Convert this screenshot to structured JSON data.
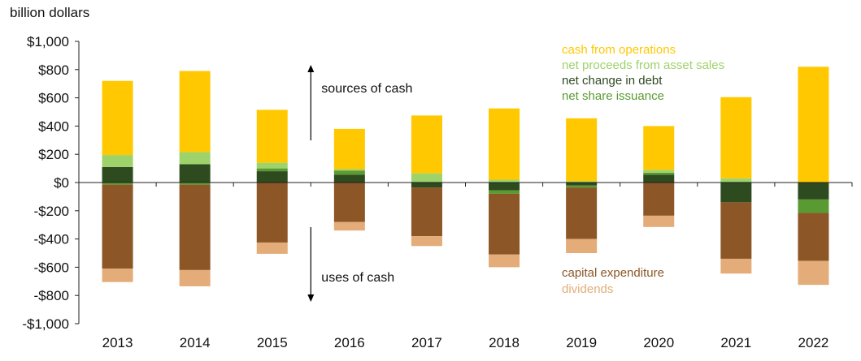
{
  "chart_data": {
    "type": "bar",
    "stacked": true,
    "ylabel": "billion dollars",
    "ylim": [
      -1000,
      1000
    ],
    "yticks": [
      1000,
      800,
      600,
      400,
      200,
      0,
      -200,
      -400,
      -600,
      -800,
      -1000
    ],
    "ytick_labels": [
      "$1,000",
      "$800",
      "$600",
      "$400",
      "$200",
      "$0",
      "-$200",
      "-$400",
      "-$600",
      "-$800",
      "-$1,000"
    ],
    "categories": [
      "2013",
      "2014",
      "2015",
      "2016",
      "2017",
      "2018",
      "2019",
      "2020",
      "2021",
      "2022"
    ],
    "series": [
      {
        "name": "net change in debt",
        "color": "#2e4a1f",
        "values": [
          110,
          130,
          80,
          55,
          -35,
          -55,
          -20,
          55,
          -140,
          -120
        ]
      },
      {
        "name": "net share issuance",
        "color": "#5a9a32",
        "values": [
          -15,
          -15,
          20,
          30,
          5,
          -25,
          -15,
          15,
          5,
          -95
        ]
      },
      {
        "name": "net proceeds from asset sales",
        "color": "#9ed26a",
        "values": [
          85,
          85,
          40,
          10,
          60,
          20,
          10,
          20,
          25,
          0
        ]
      },
      {
        "name": "cash from operations",
        "color": "#ffc800",
        "values": [
          525,
          575,
          375,
          285,
          410,
          505,
          445,
          310,
          575,
          820
        ]
      },
      {
        "name": "capital expenditure",
        "color": "#8c5626",
        "values": [
          -595,
          -605,
          -425,
          -280,
          -345,
          -430,
          -365,
          -235,
          -400,
          -340
        ]
      },
      {
        "name": "dividends",
        "color": "#e3ac78",
        "values": [
          -95,
          -115,
          -80,
          -60,
          -70,
          -90,
          -100,
          -80,
          -105,
          -170
        ]
      }
    ],
    "legend_top": [
      {
        "label": "cash from operations",
        "color": "#ffc800"
      },
      {
        "label": "net proceeds from asset sales",
        "color": "#9ed26a"
      },
      {
        "label": "net change in debt",
        "color": "#2e4a1f"
      },
      {
        "label": "net share issuance",
        "color": "#5a9a32"
      }
    ],
    "legend_bottom": [
      {
        "label": "capital expenditure",
        "color": "#8c5626"
      },
      {
        "label": "dividends",
        "color": "#e3ac78"
      }
    ],
    "annotations": {
      "sources": "sources of cash",
      "uses": "uses of cash"
    }
  }
}
